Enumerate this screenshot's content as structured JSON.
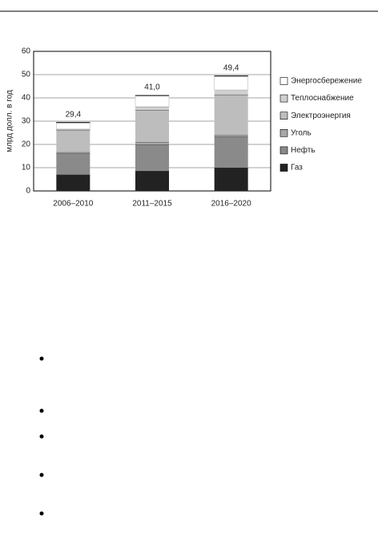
{
  "chart_data": {
    "type": "stacked_bar",
    "y_label": "млрд долл. в год",
    "categories": [
      "2006–2010",
      "2011–2015",
      "2016–2020"
    ],
    "series": [
      {
        "name": "Газ",
        "color": "#222222",
        "values": [
          7,
          8.6,
          10
        ]
      },
      {
        "name": "Нефть",
        "color": "#8a8a8a",
        "values": [
          9,
          11.4,
          13.4
        ]
      },
      {
        "name": "Уголь",
        "color": "#a8a8a8",
        "values": [
          0.6,
          1,
          0.6
        ]
      },
      {
        "name": "Электроэнергия",
        "color": "#bdbdbd",
        "values": [
          9.4,
          13.8,
          17.4
        ]
      },
      {
        "name": "Теплоснабжение",
        "color": "#d0d0d0",
        "values": [
          0.6,
          1.4,
          2
        ]
      },
      {
        "name": "Энергосбережение",
        "color": "#ffffff",
        "values": [
          2.8,
          4.8,
          6
        ]
      }
    ],
    "totals": [
      29.4,
      41.0,
      49.4
    ],
    "total_labels": [
      "29,4",
      "41,0",
      "49,4"
    ],
    "ylim": [
      0,
      60
    ],
    "yticks": [
      0,
      10,
      20,
      30,
      40,
      50,
      60
    ],
    "grid": true
  }
}
